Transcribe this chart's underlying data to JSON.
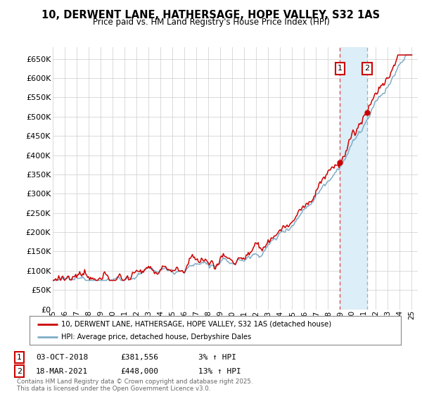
{
  "title": "10, DERWENT LANE, HATHERSAGE, HOPE VALLEY, S32 1AS",
  "subtitle": "Price paid vs. HM Land Registry's House Price Index (HPI)",
  "ylabel_ticks": [
    "£0",
    "£50K",
    "£100K",
    "£150K",
    "£200K",
    "£250K",
    "£300K",
    "£350K",
    "£400K",
    "£450K",
    "£500K",
    "£550K",
    "£600K",
    "£650K"
  ],
  "ylim": [
    0,
    680000
  ],
  "ytick_values": [
    0,
    50000,
    100000,
    150000,
    200000,
    250000,
    300000,
    350000,
    400000,
    450000,
    500000,
    550000,
    600000,
    650000
  ],
  "red_line_color": "#cc0000",
  "blue_line_color": "#7eadc8",
  "marker1_x": 2019.0,
  "marker1_value": 381556,
  "marker2_x": 2021.25,
  "marker2_value": 448000,
  "vline1_color": "#dd4444",
  "vline2_color": "#8ab4cc",
  "shade_color": "#dceef7",
  "legend1_label": "10, DERWENT LANE, HATHERSAGE, HOPE VALLEY, S32 1AS (detached house)",
  "legend2_label": "HPI: Average price, detached house, Derbyshire Dales",
  "footnote": "Contains HM Land Registry data © Crown copyright and database right 2025.\nThis data is licensed under the Open Government Licence v3.0.",
  "annotation1_date_str": "03-OCT-2018",
  "annotation1_price_str": "£381,556",
  "annotation1_hpi_str": "3% ↑ HPI",
  "annotation2_date_str": "18-MAR-2021",
  "annotation2_price_str": "£448,000",
  "annotation2_hpi_str": "13% ↑ HPI",
  "background_color": "#ffffff",
  "grid_color": "#cccccc"
}
